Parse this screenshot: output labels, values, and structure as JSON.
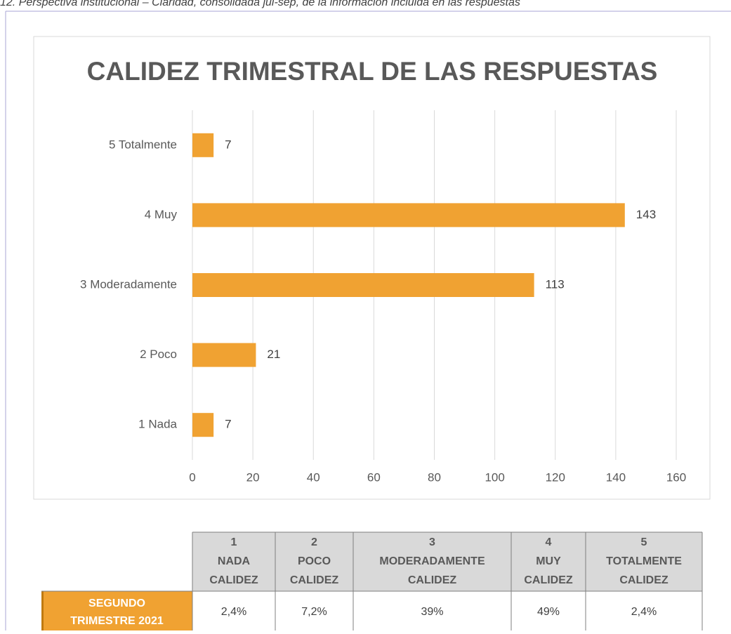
{
  "caption": "12. Perspectiva institucional – Claridad, consolidada jul-sep, de la información incluida en las respuestas",
  "chart_data": {
    "type": "bar",
    "orientation": "horizontal",
    "title": "CALIDEZ TRIMESTRAL DE LAS RESPUESTAS",
    "categories": [
      "1 Nada",
      "2 Poco",
      "3 Moderadamente",
      "4 Muy",
      "5 Totalmente"
    ],
    "values": [
      7,
      21,
      113,
      143,
      7
    ],
    "color": "#f0a232",
    "xlim": [
      0,
      160
    ],
    "xticks": [
      0,
      20,
      40,
      60,
      80,
      100,
      120,
      140,
      160
    ],
    "grid": true
  },
  "table": {
    "headers": [
      [
        "1",
        "NADA",
        "CALIDEZ"
      ],
      [
        "2",
        "POCO",
        "CALIDEZ"
      ],
      [
        "3",
        "MODERADAMENTE",
        "CALIDEZ"
      ],
      [
        "4",
        "MUY",
        "CALIDEZ"
      ],
      [
        "5",
        "TOTALMENTE",
        "CALIDEZ"
      ]
    ],
    "rows": [
      {
        "label": [
          "SEGUNDO",
          "TRIMESTRE 2021"
        ],
        "cells": [
          "2,4%",
          "7,2%",
          "39%",
          "49%",
          "2,4%"
        ]
      }
    ]
  }
}
